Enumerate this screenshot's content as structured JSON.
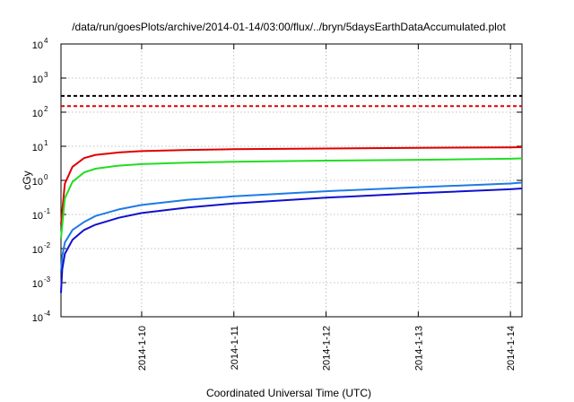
{
  "chart_data": {
    "type": "line",
    "title": "/data/run/goesPlots/archive/2014-01-14/03:00/flux/../bryn/5daysEarthDataAccumulated.plot",
    "xlabel": "Coordinated Universal Time (UTC)",
    "ylabel": "cGy",
    "y_scale": "log",
    "ylim": [
      0.0001,
      10000
    ],
    "xlim": [
      "2014-01-09 03:00",
      "2014-01-14 03:00"
    ],
    "grid": true,
    "y_ticks": [
      {
        "base": "10",
        "exp": "-4",
        "value": 0.0001
      },
      {
        "base": "10",
        "exp": "-3",
        "value": 0.001
      },
      {
        "base": "10",
        "exp": "-2",
        "value": 0.01
      },
      {
        "base": "10",
        "exp": "-1",
        "value": 0.1
      },
      {
        "base": "10",
        "exp": "0",
        "value": 1
      },
      {
        "base": "10",
        "exp": "1",
        "value": 10
      },
      {
        "base": "10",
        "exp": "2",
        "value": 100
      },
      {
        "base": "10",
        "exp": "3",
        "value": 1000
      },
      {
        "base": "10",
        "exp": "4",
        "value": 10000
      }
    ],
    "x_ticks": [
      {
        "label": "2014-1-10",
        "value": "2014-01-10 00:00"
      },
      {
        "label": "2014-1-11",
        "value": "2014-01-11 00:00"
      },
      {
        "label": "2014-1-12",
        "value": "2014-01-12 00:00"
      },
      {
        "label": "2014-1-13",
        "value": "2014-01-13 00:00"
      },
      {
        "label": "2014-1-14",
        "value": "2014-01-14 00:00"
      }
    ],
    "thresholds": [
      {
        "value": 300,
        "color": "#000000",
        "dash": true
      },
      {
        "value": 150,
        "color": "#e00000",
        "dash": true
      }
    ],
    "series": [
      {
        "color": "#e00000",
        "x": [
          "2014-01-09 03:00",
          "2014-01-09 04:00",
          "2014-01-09 06:00",
          "2014-01-09 09:00",
          "2014-01-09 12:00",
          "2014-01-09 18:00",
          "2014-01-10 00:00",
          "2014-01-10 12:00",
          "2014-01-11 00:00",
          "2014-01-12 00:00",
          "2014-01-13 00:00",
          "2014-01-14 00:00",
          "2014-01-14 03:00"
        ],
        "y": [
          0.05,
          0.8,
          2.5,
          4.5,
          5.6,
          6.6,
          7.2,
          7.8,
          8.2,
          8.6,
          9.0,
          9.3,
          9.4
        ]
      },
      {
        "color": "#22dd22",
        "x": [
          "2014-01-09 03:00",
          "2014-01-09 04:00",
          "2014-01-09 06:00",
          "2014-01-09 09:00",
          "2014-01-09 12:00",
          "2014-01-09 18:00",
          "2014-01-10 00:00",
          "2014-01-10 12:00",
          "2014-01-11 00:00",
          "2014-01-12 00:00",
          "2014-01-13 00:00",
          "2014-01-14 00:00",
          "2014-01-14 03:00"
        ],
        "y": [
          0.02,
          0.3,
          0.9,
          1.7,
          2.2,
          2.7,
          3.0,
          3.3,
          3.5,
          3.8,
          4.0,
          4.3,
          4.4
        ]
      },
      {
        "color": "#1e7be6",
        "x": [
          "2014-01-09 03:00",
          "2014-01-09 03:20",
          "2014-01-09 04:00",
          "2014-01-09 06:00",
          "2014-01-09 09:00",
          "2014-01-09 12:00",
          "2014-01-09 18:00",
          "2014-01-10 00:00",
          "2014-01-10 12:00",
          "2014-01-11 00:00",
          "2014-01-12 00:00",
          "2014-01-13 00:00",
          "2014-01-14 00:00",
          "2014-01-14 03:00"
        ],
        "y": [
          0.002,
          0.006,
          0.015,
          0.035,
          0.06,
          0.09,
          0.14,
          0.19,
          0.27,
          0.34,
          0.48,
          0.63,
          0.81,
          0.86
        ]
      },
      {
        "color": "#1010cc",
        "x": [
          "2014-01-09 03:00",
          "2014-01-09 03:20",
          "2014-01-09 04:00",
          "2014-01-09 06:00",
          "2014-01-09 09:00",
          "2014-01-09 12:00",
          "2014-01-09 18:00",
          "2014-01-10 00:00",
          "2014-01-10 12:00",
          "2014-01-11 00:00",
          "2014-01-12 00:00",
          "2014-01-13 00:00",
          "2014-01-14 00:00",
          "2014-01-14 03:00"
        ],
        "y": [
          0.0005,
          0.0025,
          0.007,
          0.018,
          0.035,
          0.05,
          0.08,
          0.11,
          0.16,
          0.21,
          0.31,
          0.42,
          0.55,
          0.58
        ]
      }
    ]
  }
}
